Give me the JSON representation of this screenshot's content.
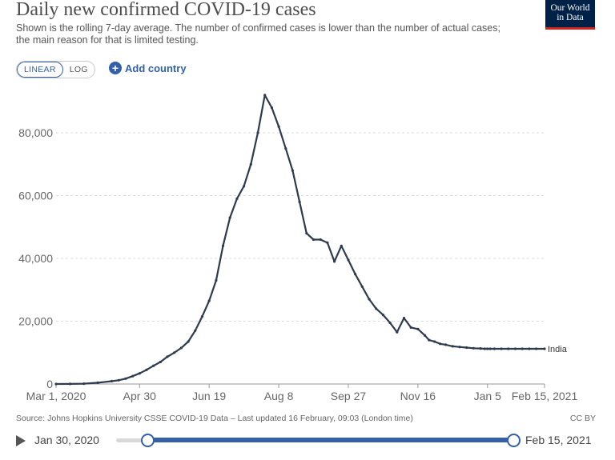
{
  "header": {
    "title": "Daily new confirmed COVID-19 cases",
    "subtitle": "Shown is the rolling 7-day average. The number of confirmed cases is lower than the number of actual cases; the main reason for that is limited testing.",
    "logo_line1": "Our World",
    "logo_line2": "in Data"
  },
  "controls": {
    "linear_label": "LINEAR",
    "log_label": "LOG",
    "add_country_label": "Add country"
  },
  "footer": {
    "source": "Source: Johns Hopkins University CSSE COVID-19 Data – Last updated 16 February, 09:03 (London time)",
    "license": "CC BY"
  },
  "timeline": {
    "play_icon": "play-icon",
    "start_label": "Jan 30, 2020",
    "end_label": "Feb 15, 2021"
  },
  "colors": {
    "line": "#2e3b4e",
    "grid": "#dddddd",
    "accent": "#3360a9",
    "logo_bg": "#002147",
    "logo_bar": "#ce261e"
  },
  "chart_data": {
    "type": "line",
    "title": "Daily new confirmed COVID-19 cases",
    "xlabel": "",
    "ylabel": "",
    "x_range_days": [
      0,
      351
    ],
    "ylim": [
      0,
      100000
    ],
    "y_ticks": [
      0,
      20000,
      40000,
      60000,
      80000
    ],
    "y_tick_labels": [
      "0",
      "20,000",
      "40,000",
      "60,000",
      "80,000"
    ],
    "x_ticks": [
      0,
      60,
      110,
      160,
      210,
      260,
      310,
      351
    ],
    "x_tick_labels": [
      "Mar 1, 2020",
      "Apr 30",
      "Jun 19",
      "Aug 8",
      "Sep 27",
      "Nov 16",
      "Jan 5",
      "Feb 15, 2021"
    ],
    "grid": true,
    "series": [
      {
        "name": "India",
        "x": [
          0,
          10,
          20,
          30,
          40,
          45,
          50,
          55,
          60,
          65,
          70,
          75,
          80,
          85,
          90,
          95,
          100,
          105,
          110,
          115,
          120,
          125,
          130,
          135,
          140,
          145,
          150,
          155,
          160,
          165,
          170,
          175,
          180,
          185,
          190,
          195,
          200,
          205,
          210,
          215,
          220,
          225,
          230,
          235,
          240,
          245,
          250,
          255,
          260,
          265,
          268,
          272,
          276,
          280,
          285,
          290,
          295,
          300,
          305,
          308,
          310,
          312,
          315,
          320,
          325,
          330,
          335,
          340,
          345,
          351
        ],
        "values": [
          0,
          30,
          100,
          400,
          900,
          1200,
          1700,
          2500,
          3400,
          4500,
          5800,
          7000,
          8700,
          10000,
          11500,
          13500,
          17000,
          21500,
          26500,
          33000,
          44000,
          53000,
          59000,
          63000,
          70000,
          80000,
          92000,
          88000,
          82000,
          75000,
          68000,
          58000,
          48000,
          46000,
          46000,
          45000,
          39000,
          44000,
          39500,
          35000,
          31000,
          27000,
          24000,
          22000,
          19500,
          16500,
          21000,
          18000,
          17500,
          15500,
          14000,
          13500,
          12800,
          12500,
          12000,
          11800,
          11600,
          11400,
          11300,
          11200,
          11200,
          11200,
          11200,
          11200,
          11200,
          11200,
          11200,
          11200,
          11200,
          11200
        ]
      }
    ],
    "series_label": "India"
  }
}
